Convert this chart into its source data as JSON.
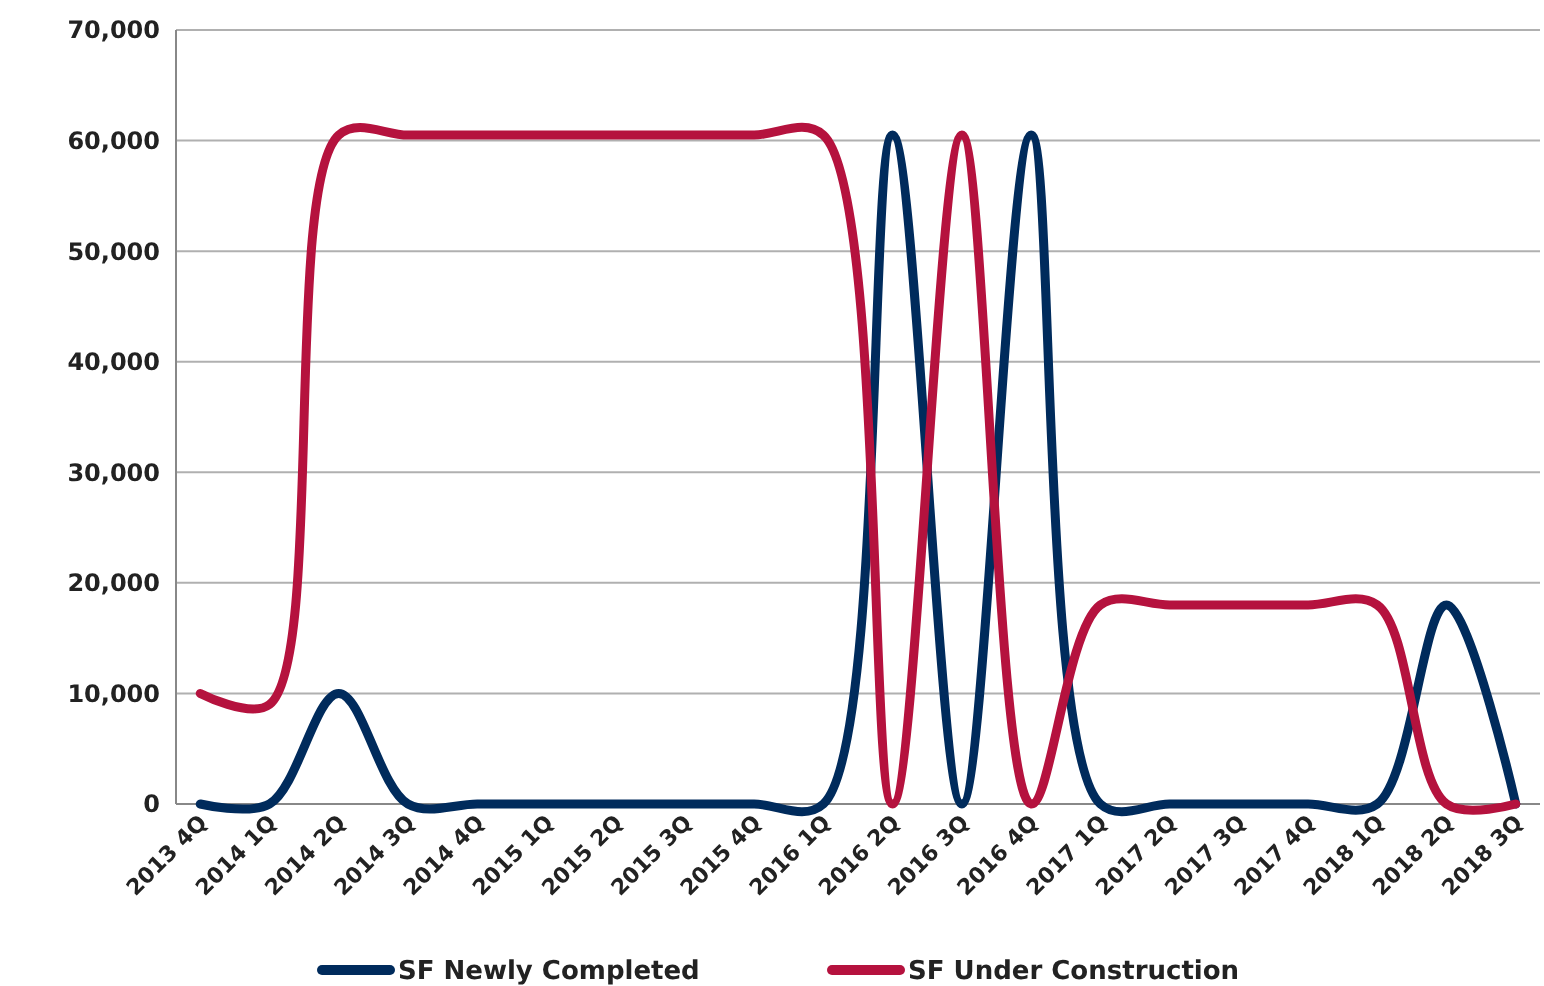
{
  "chart_data": {
    "type": "line",
    "categories": [
      "2013 4Q",
      "2014 1Q",
      "2014 2Q",
      "2014 3Q",
      "2014 4Q",
      "2015 1Q",
      "2015 2Q",
      "2015 3Q",
      "2015 4Q",
      "2016 1Q",
      "2016 2Q",
      "2016 3Q",
      "2016 4Q",
      "2017 1Q",
      "2017 2Q",
      "2017 3Q",
      "2017 4Q",
      "2018 1Q",
      "2018 2Q",
      "2018 3Q"
    ],
    "series": [
      {
        "name": "SF Newly Completed",
        "color": "#002b5c",
        "values": [
          0,
          0,
          10000,
          0,
          0,
          0,
          0,
          0,
          0,
          0,
          60500,
          0,
          60500,
          0,
          0,
          0,
          0,
          0,
          18000,
          0
        ]
      },
      {
        "name": "SF Under Construction",
        "color": "#b5123e",
        "values": [
          10000,
          9000,
          60500,
          60500,
          60500,
          60500,
          60500,
          60500,
          60500,
          60500,
          0,
          60500,
          0,
          18000,
          18000,
          18000,
          18000,
          18000,
          0,
          0
        ]
      }
    ],
    "ylim": [
      0,
      70000
    ],
    "yticks": [
      {
        "value": 0,
        "label": "0"
      },
      {
        "value": 10000,
        "label": "10,000"
      },
      {
        "value": 20000,
        "label": "20,000"
      },
      {
        "value": 30000,
        "label": "30,000"
      },
      {
        "value": 40000,
        "label": "40,000"
      },
      {
        "value": 50000,
        "label": "50,000"
      },
      {
        "value": 60000,
        "label": "60,000"
      },
      {
        "value": 70000,
        "label": "70,000"
      }
    ],
    "grid": "y",
    "legend": "bottom",
    "marker": "none",
    "line_style": "solid"
  }
}
